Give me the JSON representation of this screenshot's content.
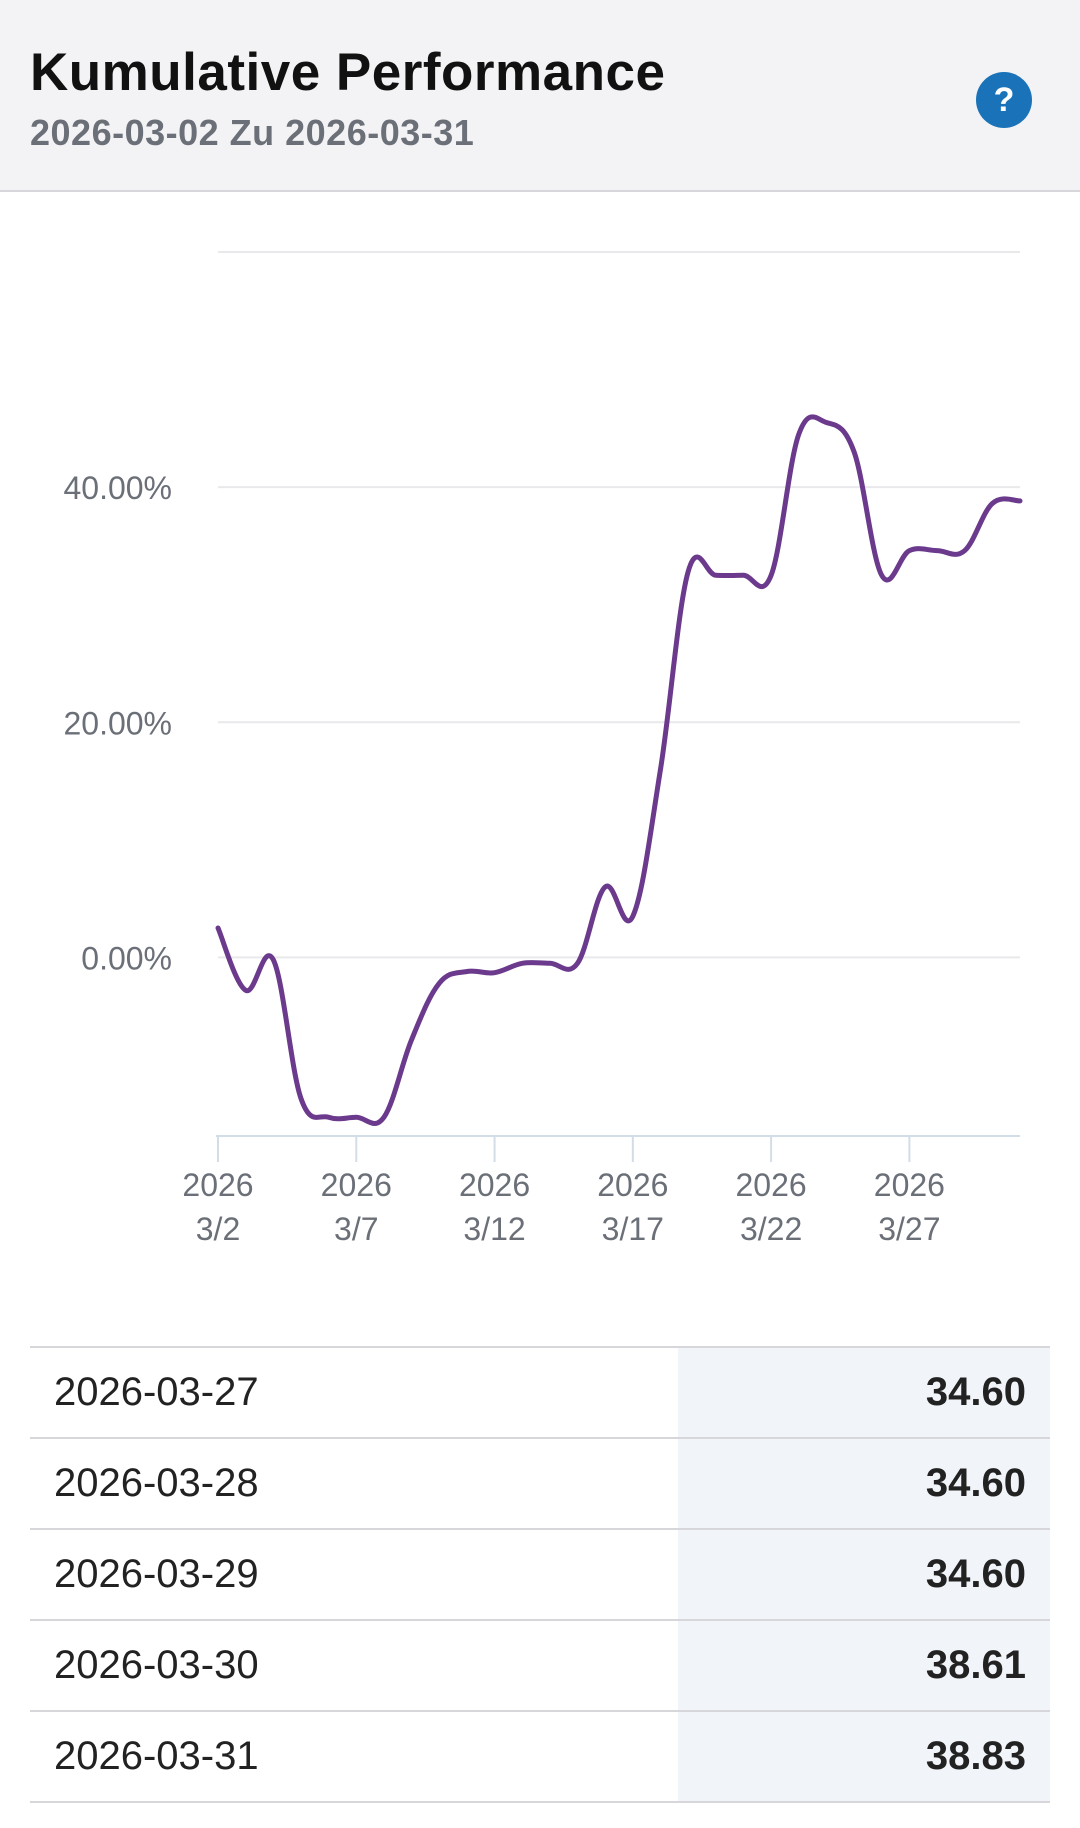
{
  "header": {
    "title": "Kumulative Performance",
    "subtitle": "2026-03-02 Zu 2026-03-31",
    "help_label": "?"
  },
  "colors": {
    "line": "#6b3a8c",
    "help": "#1a73b8",
    "grid": "#e9e9ec",
    "axis_text": "#6b6f77"
  },
  "chart_data": {
    "type": "line",
    "title": "Kumulative Performance",
    "x_unit": "date",
    "xlim": [
      "2026-03-02",
      "2026-03-31"
    ],
    "ylim": [
      -14,
      60
    ],
    "grid": true,
    "y_ticks": [
      {
        "value": 0,
        "label": "0.00%"
      },
      {
        "value": 20,
        "label": "20.00%"
      },
      {
        "value": 40,
        "label": "40.00%"
      }
    ],
    "x_ticks": [
      {
        "date": "2026-03-02",
        "year": "2026",
        "label": "3/2"
      },
      {
        "date": "2026-03-07",
        "year": "2026",
        "label": "3/7"
      },
      {
        "date": "2026-03-12",
        "year": "2026",
        "label": "3/12"
      },
      {
        "date": "2026-03-17",
        "year": "2026",
        "label": "3/17"
      },
      {
        "date": "2026-03-22",
        "year": "2026",
        "label": "3/22"
      },
      {
        "date": "2026-03-27",
        "year": "2026",
        "label": "3/27"
      }
    ],
    "series": [
      {
        "points": [
          [
            "2026-03-02",
            2.5
          ],
          [
            "2026-03-03",
            -2.8
          ],
          [
            "2026-03-04",
            -0.2
          ],
          [
            "2026-03-05",
            -12.0
          ],
          [
            "2026-03-06",
            -13.6
          ],
          [
            "2026-03-07",
            -13.6
          ],
          [
            "2026-03-08",
            -13.6
          ],
          [
            "2026-03-09",
            -7.0
          ],
          [
            "2026-03-10",
            -2.2
          ],
          [
            "2026-03-11",
            -1.2
          ],
          [
            "2026-03-12",
            -1.3
          ],
          [
            "2026-03-13",
            -0.5
          ],
          [
            "2026-03-14",
            -0.5
          ],
          [
            "2026-03-15",
            -0.5
          ],
          [
            "2026-03-16",
            6.0
          ],
          [
            "2026-03-17",
            3.5
          ],
          [
            "2026-03-18",
            16.0
          ],
          [
            "2026-03-19",
            32.8
          ],
          [
            "2026-03-20",
            32.5
          ],
          [
            "2026-03-21",
            32.5
          ],
          [
            "2026-03-22",
            32.5
          ],
          [
            "2026-03-23",
            44.5
          ],
          [
            "2026-03-24",
            45.5
          ],
          [
            "2026-03-25",
            43.0
          ],
          [
            "2026-03-26",
            32.5
          ],
          [
            "2026-03-27",
            34.6
          ],
          [
            "2026-03-28",
            34.6
          ],
          [
            "2026-03-29",
            34.6
          ],
          [
            "2026-03-30",
            38.61
          ],
          [
            "2026-03-31",
            38.83
          ]
        ]
      }
    ]
  },
  "table": {
    "rows": [
      {
        "date": "2026-03-27",
        "value": "34.60"
      },
      {
        "date": "2026-03-28",
        "value": "34.60"
      },
      {
        "date": "2026-03-29",
        "value": "34.60"
      },
      {
        "date": "2026-03-30",
        "value": "38.61"
      },
      {
        "date": "2026-03-31",
        "value": "38.83"
      }
    ]
  }
}
